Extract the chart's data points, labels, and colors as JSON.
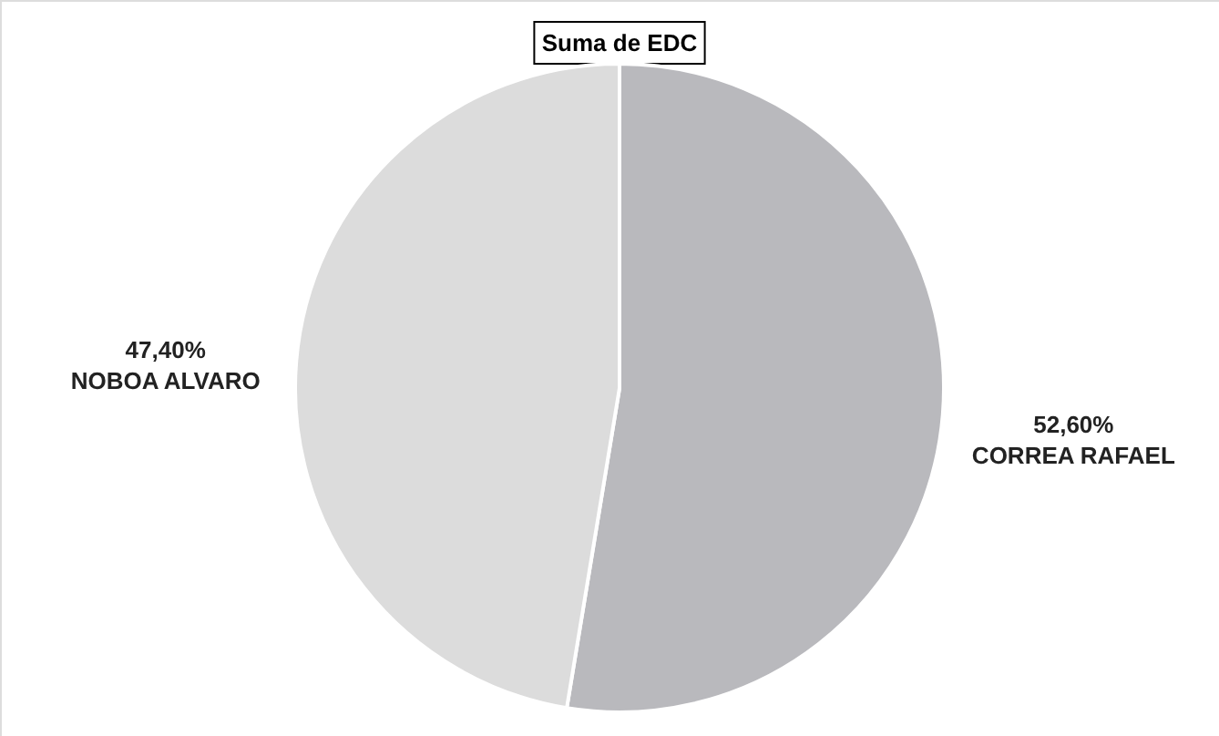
{
  "chart_data": {
    "type": "pie",
    "title": "Suma de EDC",
    "categories": [
      "CORREA RAFAEL",
      "NOBOA ALVARO"
    ],
    "values": [
      52.6,
      47.4
    ],
    "value_labels": [
      "52,60%",
      "47,40%"
    ],
    "colors": [
      "#b9b9bd",
      "#dcdcdc"
    ]
  }
}
